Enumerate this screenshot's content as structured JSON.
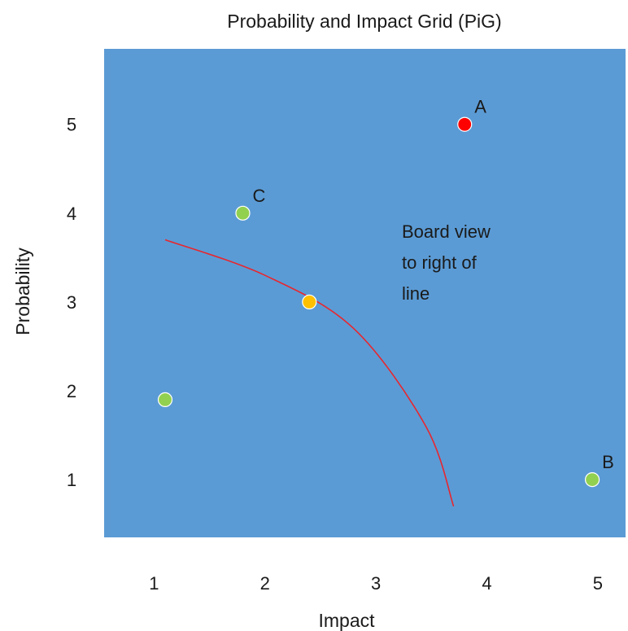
{
  "chart_data": {
    "type": "scatter",
    "title": "Probability and Impact Grid (PiG)",
    "xlabel": "Impact",
    "ylabel": "Probability",
    "x_ticks": [
      {
        "label": "1",
        "value": 1
      },
      {
        "label": "2",
        "value": 2
      },
      {
        "label": "3",
        "value": 3
      },
      {
        "label": "4",
        "value": 4
      },
      {
        "label": "5",
        "value": 5
      }
    ],
    "y_ticks": [
      {
        "label": "1",
        "value": 1
      },
      {
        "label": "2",
        "value": 2
      },
      {
        "label": "3",
        "value": 3
      },
      {
        "label": "4",
        "value": 4
      },
      {
        "label": "5",
        "value": 5
      }
    ],
    "xlim": [
      0.55,
      5.25
    ],
    "ylim": [
      0.35,
      5.85
    ],
    "grid": false,
    "background_color": "#5B9BD5",
    "points": [
      {
        "label": "A",
        "x": 3.8,
        "y": 5.0,
        "color": "#FF0000"
      },
      {
        "label": "C",
        "x": 1.8,
        "y": 4.0,
        "color": "#92D050"
      },
      {
        "label": "",
        "x": 2.4,
        "y": 3.0,
        "color": "#FFC000"
      },
      {
        "label": "",
        "x": 1.1,
        "y": 1.9,
        "color": "#92D050"
      },
      {
        "label": "B",
        "x": 4.95,
        "y": 1.0,
        "color": "#92D050"
      }
    ],
    "threshold_curve": {
      "color": "#E8262E",
      "points": [
        [
          1.1,
          3.7
        ],
        [
          2.0,
          3.3
        ],
        [
          2.8,
          2.7
        ],
        [
          3.45,
          1.6
        ],
        [
          3.7,
          0.7
        ]
      ]
    },
    "annotation": {
      "lines": [
        "Board view",
        "to right of",
        "line"
      ],
      "x": 3.85,
      "y": 3.7
    }
  }
}
